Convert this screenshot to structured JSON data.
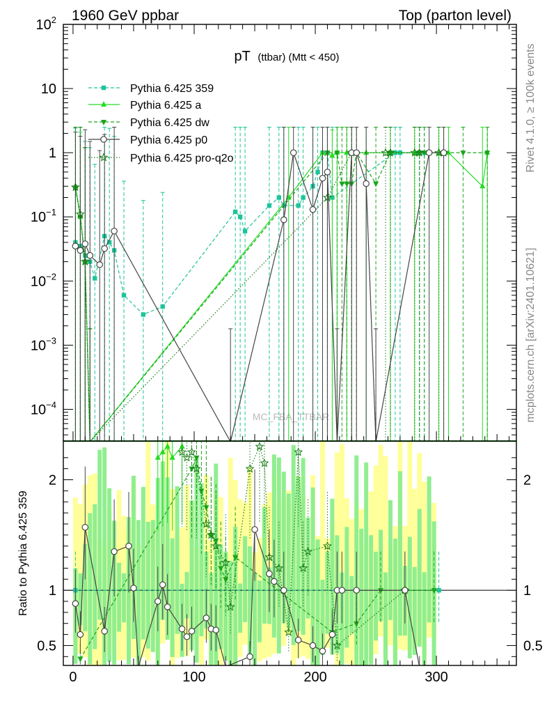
{
  "header": {
    "left": "1960 GeV ppbar",
    "right": "Top (parton level)"
  },
  "side_labels": {
    "rivet": "Rivet 4.1.0, ≥ 100k events",
    "mcplots": "mcplots.cern.ch [arXiv:2401.10621]"
  },
  "watermark": "MC_FBA_TTBAR",
  "plot_title": {
    "main": "pT",
    "sub": "(ttbar) (Mtt < 450)"
  },
  "ratio_ylabel": "Ratio to Pythia 6.425 359",
  "colors": {
    "359": "#1ec39a",
    "a": "#22dd22",
    "dw": "#1aa51a",
    "p0": "#444444",
    "pro-q2o": "#127a12",
    "band_yellow": "#ffff99",
    "band_green": "#90ee90"
  },
  "chart_data": {
    "type": "line",
    "xlim": [
      -8,
      366
    ],
    "main_ylim": [
      3.2e-05,
      100
    ],
    "ratio_ylim": [
      0.32,
      2.35
    ],
    "x_ticks": [
      0,
      100,
      200,
      300
    ],
    "x_tick_labels": [
      "0",
      "100",
      "200",
      "300"
    ],
    "main_ticks": [
      {
        "value": 100,
        "base": "10",
        "exp": "2"
      },
      {
        "value": 10,
        "base": "10",
        "exp": ""
      },
      {
        "value": 1,
        "base": "1",
        "exp": ""
      },
      {
        "value": 0.1,
        "base": "10",
        "exp": "−1"
      },
      {
        "value": 0.01,
        "base": "10",
        "exp": "−2"
      },
      {
        "value": 0.001,
        "base": "10",
        "exp": "−3"
      },
      {
        "value": 0.0001,
        "base": "10",
        "exp": "−4"
      }
    ],
    "ratio_ticks": [
      {
        "value": 0.5,
        "label": "0.5"
      },
      {
        "value": 1,
        "label": "1"
      },
      {
        "value": 2,
        "label": "2"
      }
    ],
    "series": [
      {
        "key": "359",
        "name": "Pythia 6.425 359",
        "style": "dashed",
        "marker": "square",
        "points": [
          [
            2,
            0.04
          ],
          [
            6,
            0.035
          ],
          [
            10,
            0.025
          ],
          [
            14,
            0.02
          ],
          [
            18,
            0.011
          ],
          [
            26,
            0.05
          ],
          [
            30,
            0.04
          ],
          [
            34,
            0.03
          ],
          [
            42,
            0.006
          ],
          [
            58,
            0.003
          ],
          [
            74,
            0.004
          ],
          [
            134,
            0.12
          ],
          [
            138,
            0.1
          ],
          [
            142,
            0.06
          ],
          [
            162,
            0.15
          ],
          [
            170,
            0.2
          ],
          [
            174,
            0.15
          ],
          [
            186,
            0.15
          ],
          [
            190,
            0.2
          ],
          [
            198,
            0.3
          ],
          [
            202,
            0.5
          ],
          [
            206,
            1
          ],
          [
            210,
            1
          ],
          [
            214,
            0.2
          ],
          [
            266,
            1
          ],
          [
            270,
            1
          ],
          [
            286,
            1
          ],
          [
            290,
            1
          ]
        ],
        "ratio": [
          [
            2,
            1
          ],
          [
            302,
            1
          ]
        ]
      },
      {
        "key": "a",
        "name": "Pythia 6.425 a",
        "style": "solid",
        "marker": "triangle-up",
        "points": [
          [
            2,
            0.3
          ],
          [
            6,
            0.1
          ],
          [
            10,
            0.02
          ],
          [
            14,
            3e-05
          ],
          [
            178,
            0.2
          ],
          [
            206,
            1
          ],
          [
            214,
            0.9
          ],
          [
            218,
            1
          ],
          [
            226,
            1
          ],
          [
            242,
            1
          ],
          [
            262,
            1
          ],
          [
            282,
            1
          ],
          [
            302,
            1
          ],
          [
            310,
            1
          ],
          [
            338,
            0.3
          ],
          [
            342,
            1
          ]
        ],
        "ratio": [
          [
            70,
            2.2
          ],
          [
            74,
            2.25
          ],
          [
            78,
            2.3
          ],
          [
            82,
            2.2
          ],
          [
            90,
            2.3
          ]
        ]
      },
      {
        "key": "dw",
        "name": "Pythia 6.425 dw",
        "style": "dashed",
        "marker": "triangle-down",
        "points": [
          [
            2,
            0.28
          ],
          [
            6,
            0.1
          ],
          [
            10,
            0.02
          ],
          [
            14,
            3e-05
          ],
          [
            210,
            1
          ],
          [
            218,
            1
          ],
          [
            222,
            0.33
          ],
          [
            226,
            0.33
          ],
          [
            230,
            0.33
          ],
          [
            234,
            1
          ],
          [
            250,
            0.33
          ],
          [
            262,
            1
          ],
          [
            286,
            1
          ],
          [
            290,
            1
          ],
          [
            306,
            1
          ],
          [
            322,
            1
          ],
          [
            342,
            1
          ]
        ],
        "ratio": [
          [
            6,
            0.38
          ],
          [
            98,
            2.1
          ],
          [
            102,
            2.2
          ],
          [
            106,
            1.9
          ],
          [
            110,
            1.75
          ],
          [
            114,
            1.5
          ],
          [
            118,
            1.45
          ],
          [
            122,
            1.2
          ],
          [
            126,
            1.1
          ],
          [
            134,
            1.3
          ],
          [
            214,
            0.62
          ],
          [
            234,
            0.7
          ],
          [
            254,
            1
          ],
          [
            298,
            1
          ]
        ]
      },
      {
        "key": "p0",
        "name": "Pythia 6.425 p0",
        "style": "solid",
        "marker": "circle-open",
        "points": [
          [
            2,
            0.035
          ],
          [
            6,
            0.03
          ],
          [
            10,
            0.038
          ],
          [
            14,
            0.025
          ],
          [
            22,
            0.018
          ],
          [
            26,
            0.032
          ],
          [
            34,
            0.06
          ],
          [
            130,
            3e-05
          ],
          [
            174,
            0.09
          ],
          [
            182,
            1
          ],
          [
            198,
            0.13
          ],
          [
            206,
            0.4
          ],
          [
            210,
            0.5
          ],
          [
            218,
            3e-05
          ],
          [
            230,
            1
          ],
          [
            234,
            1
          ],
          [
            242,
            0.33
          ],
          [
            250,
            3e-05
          ],
          [
            294,
            1
          ],
          [
            306,
            1
          ]
        ],
        "ratio": [
          [
            2,
            0.88
          ],
          [
            6,
            0.6
          ],
          [
            10,
            1.57
          ],
          [
            26,
            0.63
          ],
          [
            34,
            1.35
          ],
          [
            46,
            1.4
          ],
          [
            50,
            1.02
          ],
          [
            54,
            0.3
          ],
          [
            70,
            0.9
          ],
          [
            74,
            1.05
          ],
          [
            78,
            0.85
          ],
          [
            90,
            0.65
          ],
          [
            94,
            0.58
          ],
          [
            98,
            0.63
          ],
          [
            110,
            0.75
          ],
          [
            114,
            0.65
          ],
          [
            118,
            0.64
          ],
          [
            126,
            0.3
          ],
          [
            146,
            0.4
          ],
          [
            150,
            1.55
          ],
          [
            162,
            1.15
          ],
          [
            166,
            1.08
          ],
          [
            174,
            1.0
          ],
          [
            186,
            0.55
          ],
          [
            198,
            0.5
          ],
          [
            206,
            0.45
          ],
          [
            214,
            0.6
          ],
          [
            218,
            1.0
          ],
          [
            222,
            1.0
          ],
          [
            234,
            1.0
          ],
          [
            274,
            1.0
          ],
          [
            286,
            0.3
          ]
        ]
      },
      {
        "key": "pro-q2o",
        "name": "Pythia 6.425 pro-q2o",
        "style": "dotted",
        "marker": "star-open",
        "points": [
          [
            2,
            0.29
          ],
          [
            6,
            0.11
          ],
          [
            10,
            0.02
          ],
          [
            14,
            3e-05
          ],
          [
            210,
            0.2
          ],
          [
            230,
            1
          ],
          [
            258,
            1
          ],
          [
            262,
            1
          ],
          [
            282,
            1
          ],
          [
            286,
            1
          ],
          [
            302,
            1
          ],
          [
            306,
            1
          ]
        ],
        "ratio": [
          [
            90,
            2.25
          ],
          [
            94,
            2.2
          ],
          [
            98,
            2.25
          ],
          [
            102,
            2.1
          ],
          [
            110,
            1.6
          ],
          [
            114,
            1.5
          ],
          [
            118,
            1.4
          ],
          [
            126,
            1.25
          ],
          [
            130,
            0.85
          ],
          [
            146,
            2.1
          ],
          [
            154,
            2.3
          ],
          [
            158,
            2.15
          ],
          [
            162,
            1.3
          ],
          [
            170,
            1.2
          ],
          [
            178,
            0.62
          ],
          [
            186,
            2.25
          ],
          [
            190,
            1.2
          ],
          [
            194,
            1.35
          ],
          [
            210,
            1.4
          ],
          [
            218,
            0.5
          ],
          [
            274,
            1
          ]
        ]
      }
    ]
  }
}
